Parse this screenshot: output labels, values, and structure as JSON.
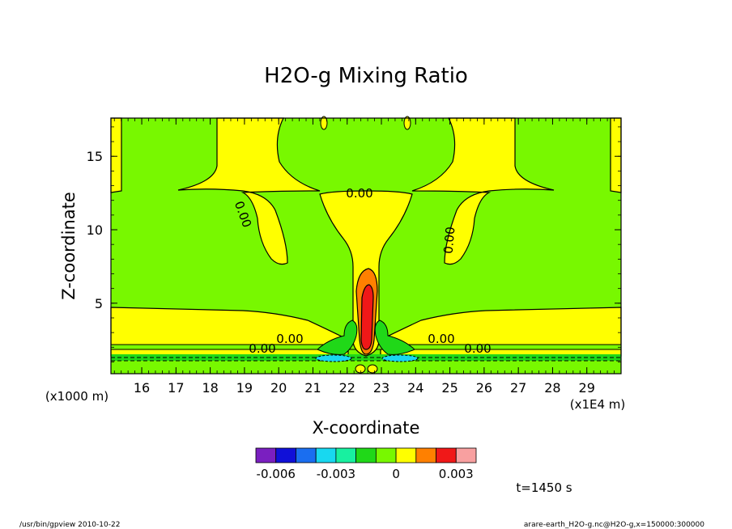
{
  "chart_data": {
    "type": "heatmap",
    "title": "H2O-g Mixing Ratio",
    "xlabel": "X-coordinate",
    "ylabel": "Z-coordinate",
    "x_unit_label": "(x1E4 m)",
    "y_unit_label": "(x1000 m)",
    "xlim": [
      15.1,
      30.0
    ],
    "ylim": [
      0.2,
      17.6
    ],
    "x_ticks": [
      "16",
      "17",
      "18",
      "19",
      "20",
      "21",
      "22",
      "23",
      "24",
      "25",
      "26",
      "27",
      "28",
      "29"
    ],
    "y_ticks": [
      "5",
      "10",
      "15"
    ],
    "contour_labels": [
      "0.00",
      "0.00",
      "0.00",
      "0.00",
      "0.00",
      "0.00",
      "0.00",
      "0.00"
    ],
    "colorbar": {
      "levels": [
        -0.007,
        -0.006,
        -0.005,
        -0.004,
        -0.003,
        -0.002,
        -0.001,
        0,
        0.001,
        0.002,
        0.003,
        0.004
      ],
      "colors": [
        "#7a1fc0",
        "#1010d8",
        "#1a6ef0",
        "#18d8f0",
        "#18f0a0",
        "#20d818",
        "#78f800",
        "#ffff00",
        "#ff8000",
        "#f01818",
        "#f8a0a0"
      ],
      "tick_labels": [
        "-0.006",
        "-0.003",
        "0",
        "0.003"
      ],
      "tick_values": [
        -0.006,
        -0.003,
        0,
        0.003
      ]
    }
  },
  "annotations": {
    "time": "t=1450 s",
    "footer_left": "/usr/bin/gpview   2010-10-22",
    "footer_right": "arare-earth_H2O-g.nc@H2O-g,x=150000:300000"
  }
}
